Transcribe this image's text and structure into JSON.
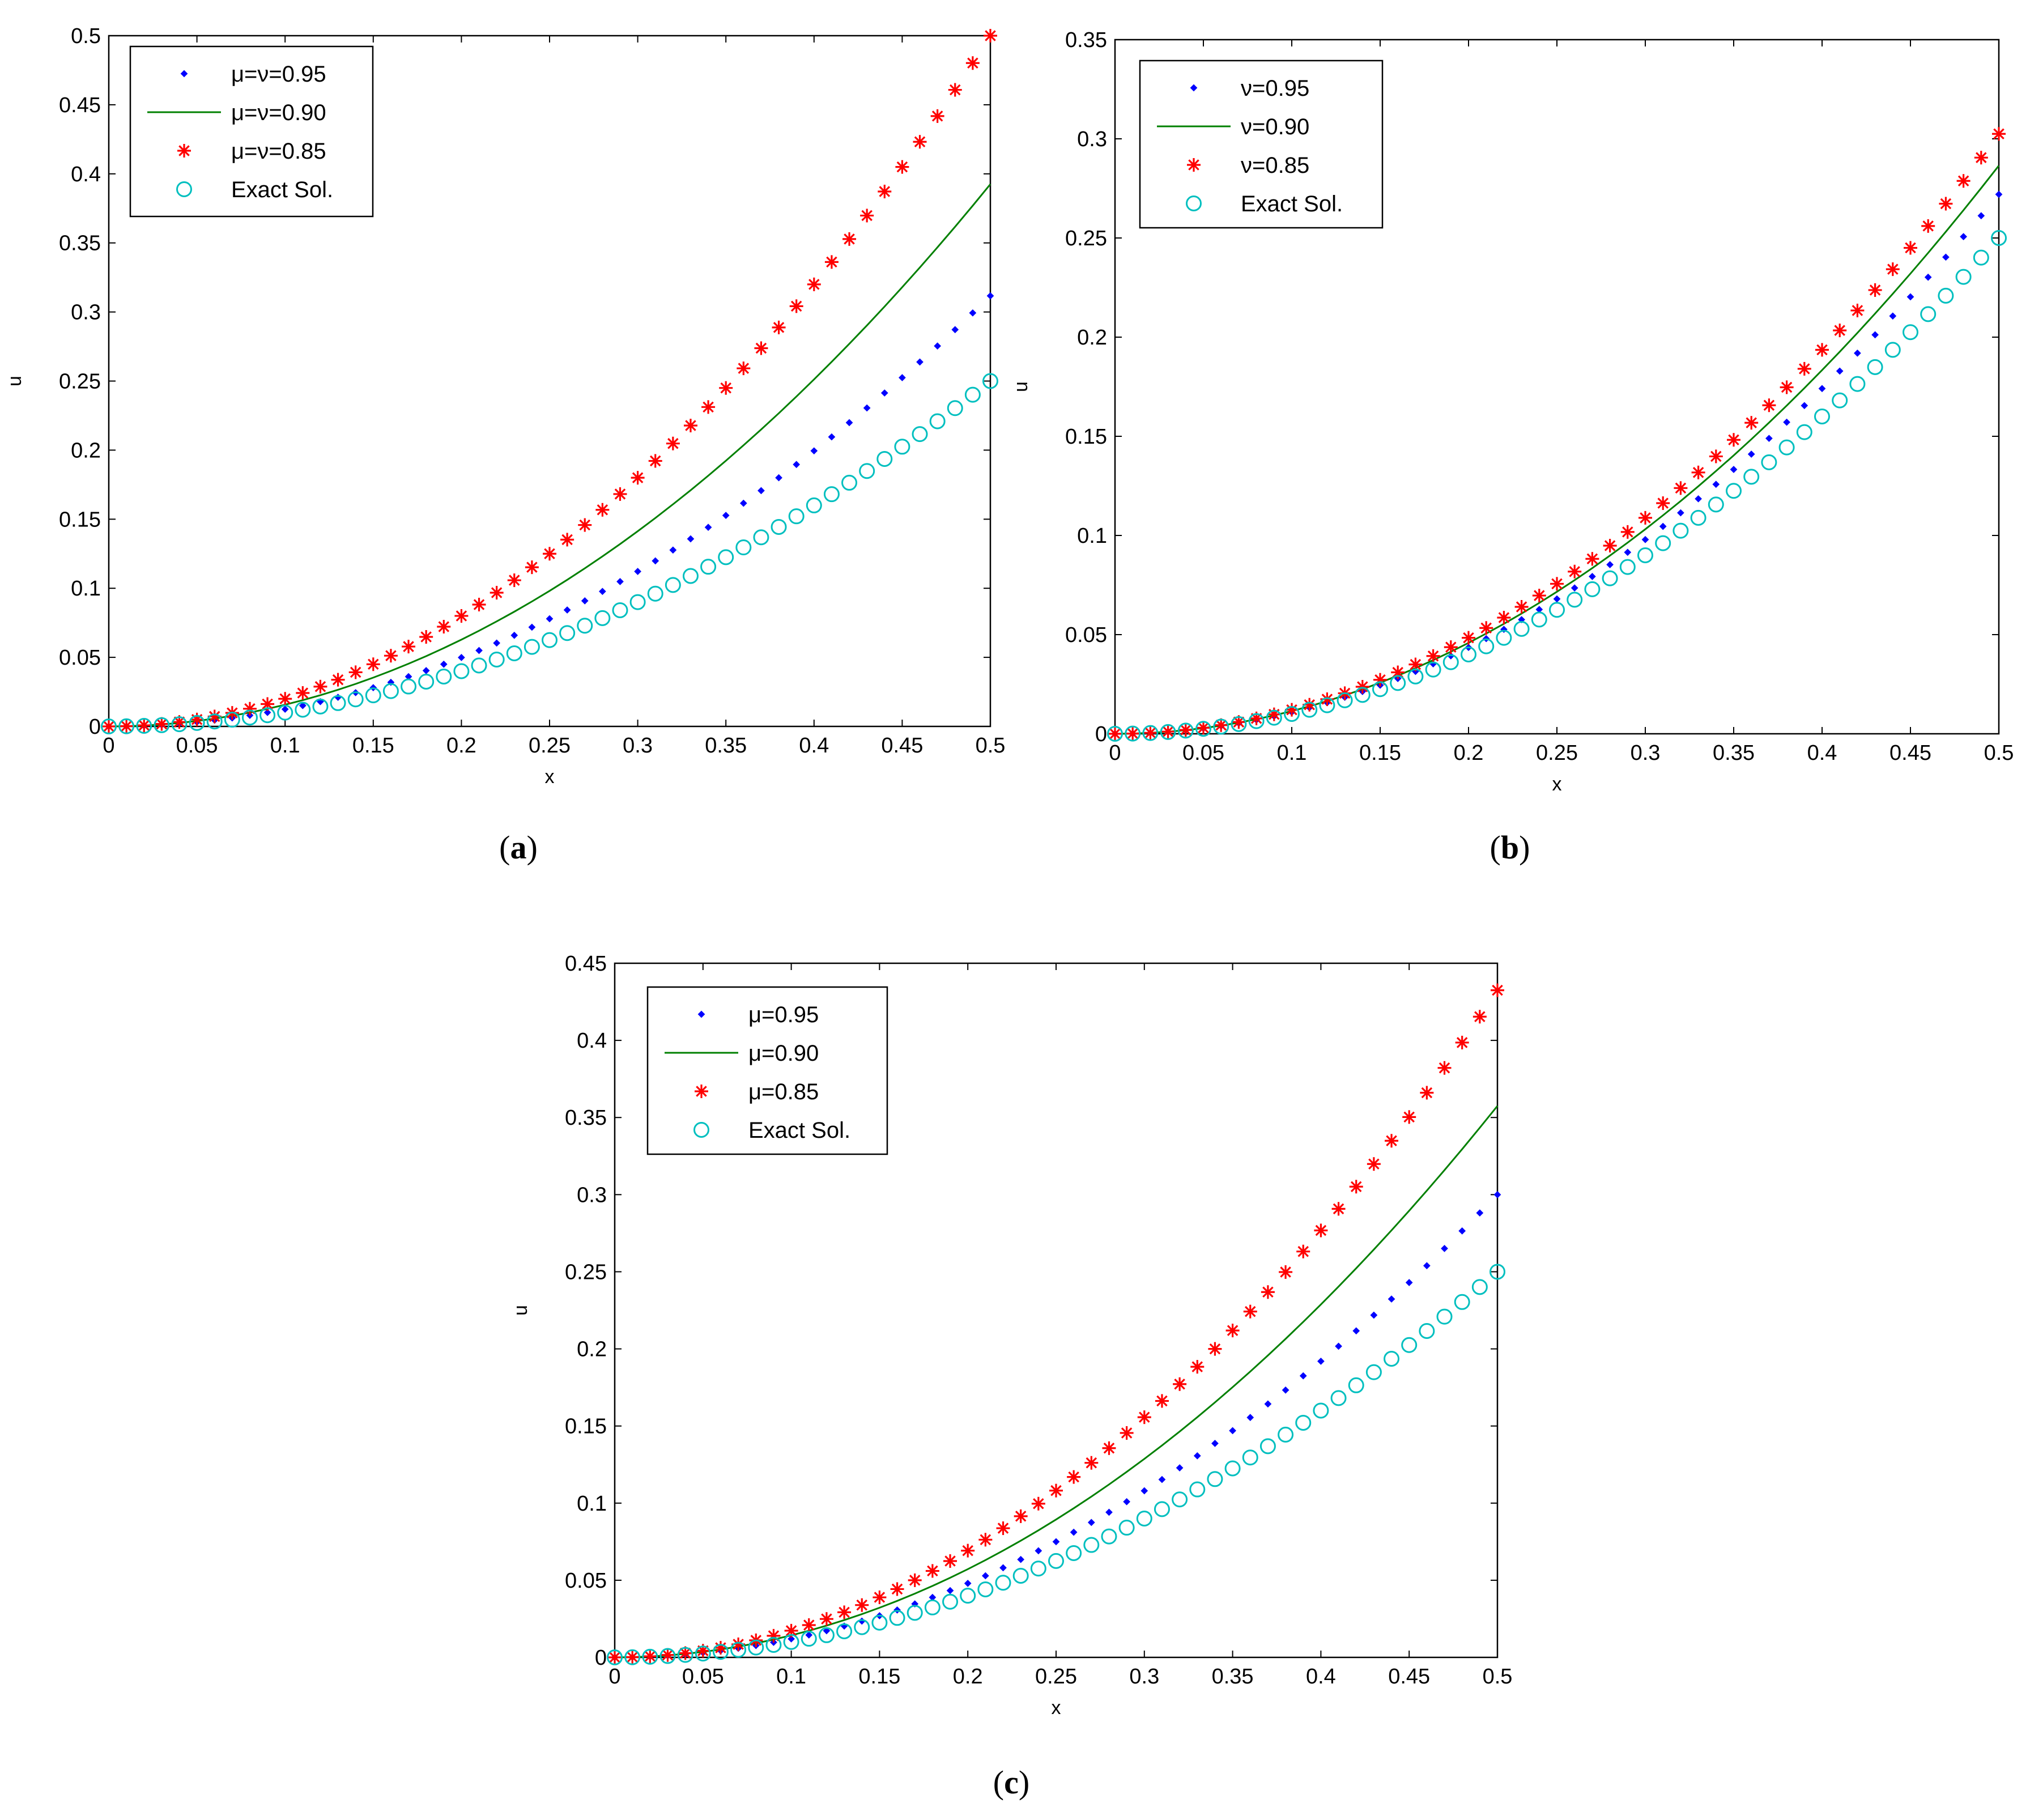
{
  "figure": {
    "captions": [
      {
        "open": "(",
        "letter": "a",
        "close": ")"
      },
      {
        "open": "(",
        "letter": "b",
        "close": ")"
      },
      {
        "open": "(",
        "letter": "c",
        "close": ")"
      }
    ]
  },
  "colors": {
    "series_095": "#0000ff",
    "series_090": "#008000",
    "series_085": "#ff0000",
    "exact": "#00bfbf"
  },
  "chart_data": [
    {
      "id": "a",
      "type": "scatter",
      "xlabel": "x",
      "ylabel": "u",
      "xlim": [
        0,
        0.5
      ],
      "ylim": [
        0,
        0.5
      ],
      "xticks": [
        "0",
        "0.05",
        "0.1",
        "0.15",
        "0.2",
        "0.25",
        "0.3",
        "0.35",
        "0.4",
        "0.45",
        "0.5"
      ],
      "yticks": [
        "0",
        "0.05",
        "0.1",
        "0.15",
        "0.2",
        "0.25",
        "0.3",
        "0.35",
        "0.4",
        "0.45",
        "0.5"
      ],
      "legend_position": "top-left",
      "series": [
        {
          "name": "μ=ν=0.95",
          "marker": "dot",
          "line": false,
          "model": {
            "a": 1.2467,
            "p": 2
          }
        },
        {
          "name": "μ=ν=0.90",
          "marker": "none",
          "line": true,
          "model": {
            "a": 1.57,
            "p": 2
          }
        },
        {
          "name": "μ=ν=0.85",
          "marker": "star",
          "line": false,
          "model": {
            "a": 2.0,
            "p": 2
          }
        },
        {
          "name": "Exact Sol.",
          "marker": "circle",
          "line": false,
          "model": {
            "a": 1.0,
            "p": 2
          }
        }
      ],
      "x_range": [
        0,
        0.5,
        0.01
      ]
    },
    {
      "id": "b",
      "type": "scatter",
      "xlabel": "x",
      "ylabel": "u",
      "xlim": [
        0,
        0.5
      ],
      "ylim": [
        0,
        0.35
      ],
      "xticks": [
        "0",
        "0.05",
        "0.1",
        "0.15",
        "0.2",
        "0.25",
        "0.3",
        "0.35",
        "0.4",
        "0.45",
        "0.5"
      ],
      "yticks": [
        "0",
        "0.05",
        "0.1",
        "0.15",
        "0.2",
        "0.25",
        "0.3",
        "0.35"
      ],
      "legend_position": "top-left",
      "series": [
        {
          "name": "ν=0.95",
          "marker": "dot",
          "line": false,
          "model": {
            "a": 1.088,
            "p": 2
          }
        },
        {
          "name": "ν=0.90",
          "marker": "none",
          "line": true,
          "model": {
            "a": 1.146,
            "p": 2
          }
        },
        {
          "name": "ν=0.85",
          "marker": "star",
          "line": false,
          "model": {
            "a": 1.21,
            "p": 2
          }
        },
        {
          "name": "Exact Sol.",
          "marker": "circle",
          "line": false,
          "model": {
            "a": 1.0,
            "p": 2
          }
        }
      ],
      "x_range": [
        0,
        0.5,
        0.01
      ]
    },
    {
      "id": "c",
      "type": "scatter",
      "xlabel": "x",
      "ylabel": "u",
      "xlim": [
        0,
        0.5
      ],
      "ylim": [
        0,
        0.45
      ],
      "xticks": [
        "0",
        "0.05",
        "0.1",
        "0.15",
        "0.2",
        "0.25",
        "0.3",
        "0.35",
        "0.4",
        "0.45",
        "0.5"
      ],
      "yticks": [
        "0",
        "0.05",
        "0.1",
        "0.15",
        "0.2",
        "0.25",
        "0.3",
        "0.35",
        "0.4",
        "0.45"
      ],
      "legend_position": "top-left",
      "series": [
        {
          "name": "μ=0.95",
          "marker": "dot",
          "line": false,
          "model": {
            "a": 1.2,
            "p": 2
          }
        },
        {
          "name": "μ=0.90",
          "marker": "none",
          "line": true,
          "model": {
            "a": 1.43,
            "p": 2
          }
        },
        {
          "name": "μ=0.85",
          "marker": "star",
          "line": false,
          "model": {
            "a": 1.73,
            "p": 2
          }
        },
        {
          "name": "Exact Sol.",
          "marker": "circle",
          "line": false,
          "model": {
            "a": 1.0,
            "p": 2
          }
        }
      ],
      "x_range": [
        0,
        0.5,
        0.01
      ]
    }
  ]
}
